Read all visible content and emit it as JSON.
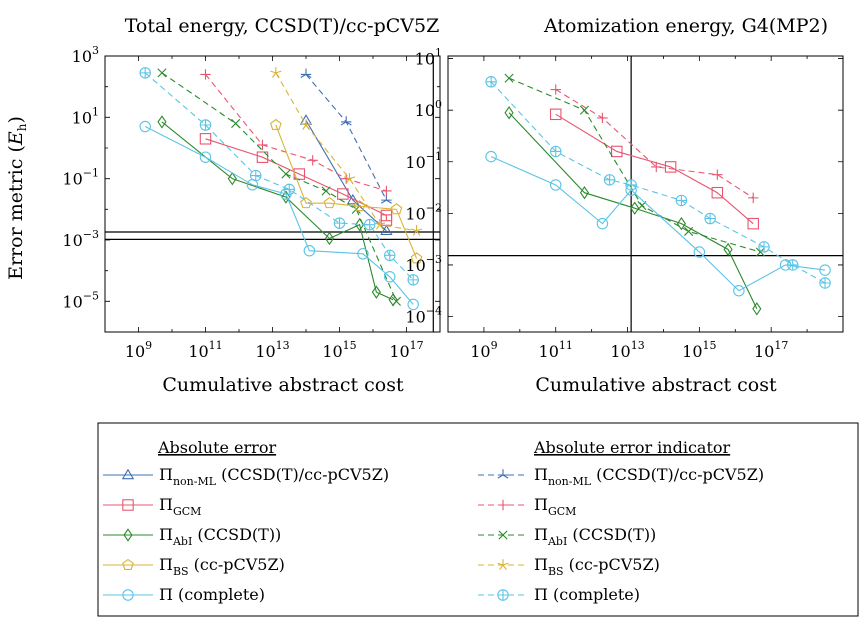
{
  "colors": {
    "nonml": "#3f6fb3",
    "gcm": "#e8556f",
    "abi": "#2b8a2b",
    "bs": "#d9b437",
    "complete": "#5bc4e6"
  },
  "legend": {
    "header_left": "Absolute error",
    "header_right": "Absolute error indicator",
    "entries": [
      {
        "label": "Π_non-ML (CCSD(T)/cc-pCV5Z)",
        "base": "Π",
        "sub": "non-ML",
        "suffix": " (CCSD(T)/cc-pCV5Z)",
        "color": "#3f6fb3",
        "marker": "triangle",
        "dash": false
      },
      {
        "label": "Π_non-ML (CCSD(T)/cc-pCV5Z)",
        "base": "Π",
        "sub": "non-ML",
        "suffix": " (CCSD(T)/cc-pCV5Z)",
        "color": "#3f6fb3",
        "marker": "tristar",
        "dash": true
      },
      {
        "label": "Π_GCM",
        "base": "Π",
        "sub": "GCM",
        "suffix": "",
        "color": "#e8556f",
        "marker": "square",
        "dash": false
      },
      {
        "label": "Π_GCM",
        "base": "Π",
        "sub": "GCM",
        "suffix": "",
        "color": "#e8556f",
        "marker": "plus",
        "dash": true
      },
      {
        "label": "Π_AbI (CCSD(T))",
        "base": "Π",
        "sub": "AbI",
        "suffix": " (CCSD(T))",
        "color": "#2b8a2b",
        "marker": "diamond",
        "dash": false
      },
      {
        "label": "Π_AbI (CCSD(T))",
        "base": "Π",
        "sub": "AbI",
        "suffix": " (CCSD(T))",
        "color": "#2b8a2b",
        "marker": "cross",
        "dash": true
      },
      {
        "label": "Π_BS (cc-pCV5Z)",
        "base": "Π",
        "sub": "BS",
        "suffix": " (cc-pCV5Z)",
        "color": "#d9b437",
        "marker": "pentagon",
        "dash": false
      },
      {
        "label": "Π_BS (cc-pCV5Z)",
        "base": "Π",
        "sub": "BS",
        "suffix": " (cc-pCV5Z)",
        "color": "#d9b437",
        "marker": "star",
        "dash": true
      },
      {
        "label": "Π (complete)",
        "base": "Π",
        "sub": "",
        "suffix": " (complete)",
        "color": "#5bc4e6",
        "marker": "circle",
        "dash": false
      },
      {
        "label": "Π (complete)",
        "base": "Π",
        "sub": "",
        "suffix": " (complete)",
        "color": "#5bc4e6",
        "marker": "oplus",
        "dash": true
      }
    ]
  },
  "chart_data": [
    {
      "type": "line",
      "title": "Total energy, CCSD(T)/cc-pCV5Z",
      "xlabel": "Cumulative abstract cost",
      "ylabel": "Error metric (E_h)",
      "ylabel_base": "Error metric (",
      "ylabel_var": "E",
      "ylabel_sub": "h",
      "ylabel_end": ")",
      "xscale": "log",
      "yscale": "log",
      "xlim_log10": [
        8,
        18
      ],
      "ylim_log10": [
        -6,
        3
      ],
      "xticks_log10": [
        9,
        11,
        13,
        15,
        17
      ],
      "yticks_log10": [
        -5,
        -3,
        -1,
        1,
        3
      ],
      "ref_lines": {
        "x_log10": 17.8,
        "y_log10": [
          -2.74,
          -2.98
        ]
      },
      "series": [
        {
          "legend": 0,
          "points": [
            [
              14,
              0.9
            ],
            [
              15.4,
              -1.7
            ],
            [
              16.4,
              -2.7
            ]
          ]
        },
        {
          "legend": 1,
          "points": [
            [
              14,
              2.4
            ],
            [
              15.2,
              0.85
            ],
            [
              16.4,
              -1.7
            ]
          ]
        },
        {
          "legend": 2,
          "points": [
            [
              11,
              0.3
            ],
            [
              12.7,
              -0.3
            ],
            [
              13.8,
              -0.85
            ],
            [
              15.1,
              -1.5
            ],
            [
              16.4,
              -2.2
            ],
            [
              16.4,
              -2.35
            ]
          ]
        },
        {
          "legend": 3,
          "points": [
            [
              11,
              2.4
            ],
            [
              12.7,
              0.1
            ],
            [
              14.2,
              -0.4
            ],
            [
              15.2,
              -1.0
            ],
            [
              16.4,
              -1.4
            ]
          ]
        },
        {
          "legend": 4,
          "points": [
            [
              9.7,
              0.85
            ],
            [
              11.8,
              -1.0
            ],
            [
              13.4,
              -1.6
            ],
            [
              14.7,
              -2.95
            ],
            [
              15.6,
              -2.5
            ],
            [
              16.1,
              -4.7
            ],
            [
              16.6,
              -4.95
            ]
          ]
        },
        {
          "legend": 5,
          "points": [
            [
              9.7,
              2.45
            ],
            [
              11.9,
              0.8
            ],
            [
              13.4,
              -0.85
            ],
            [
              14.6,
              -1.4
            ],
            [
              15.5,
              -2.0
            ],
            [
              16.7,
              -5.0
            ]
          ]
        },
        {
          "legend": 6,
          "points": [
            [
              13.1,
              0.75
            ],
            [
              14.0,
              -1.8
            ],
            [
              14.7,
              -1.8
            ],
            [
              15.6,
              -1.9
            ],
            [
              16.7,
              -2.0
            ],
            [
              17.3,
              -3.6
            ]
          ]
        },
        {
          "legend": 7,
          "points": [
            [
              13.1,
              2.45
            ],
            [
              14.0,
              0.75
            ],
            [
              15.3,
              -1.0
            ],
            [
              16.2,
              -2.5
            ],
            [
              17.3,
              -2.7
            ]
          ]
        },
        {
          "legend": 8,
          "points": [
            [
              9.2,
              0.7
            ],
            [
              11,
              -0.3
            ],
            [
              12.4,
              -1.2
            ],
            [
              13.4,
              -1.5
            ],
            [
              14.1,
              -3.35
            ],
            [
              15.7,
              -3.45
            ],
            [
              16.5,
              -4.2
            ],
            [
              17.2,
              -5.1
            ]
          ]
        },
        {
          "legend": 9,
          "points": [
            [
              9.2,
              2.45
            ],
            [
              11,
              0.75
            ],
            [
              12.5,
              -0.9
            ],
            [
              13.5,
              -1.35
            ],
            [
              15.0,
              -2.45
            ],
            [
              15.9,
              -2.5
            ],
            [
              16.5,
              -3.5
            ],
            [
              17.2,
              -4.3
            ]
          ]
        }
      ]
    },
    {
      "type": "line",
      "title": "Atomization energy, G4(MP2)",
      "xlabel": "Cumulative abstract cost",
      "xscale": "log",
      "yscale": "log",
      "xlim_log10": [
        8,
        19
      ],
      "ylim_log10": [
        -4.3,
        1.05
      ],
      "xticks_log10": [
        9,
        11,
        13,
        15,
        17
      ],
      "yticks_log10": [
        -4,
        -3,
        -2,
        -1,
        0,
        1
      ],
      "ref_lines": {
        "x_log10": 13.1,
        "y_log10": [
          -2.82
        ]
      },
      "series": [
        {
          "legend": 2,
          "points": [
            [
              11,
              -0.08
            ],
            [
              12.7,
              -0.8
            ],
            [
              14.2,
              -1.1
            ],
            [
              15.5,
              -1.6
            ],
            [
              16.5,
              -2.2
            ]
          ]
        },
        {
          "legend": 3,
          "points": [
            [
              11,
              0.4
            ],
            [
              12.3,
              -0.15
            ],
            [
              13.8,
              -1.1
            ],
            [
              15.5,
              -1.25
            ],
            [
              16.5,
              -1.7
            ]
          ]
        },
        {
          "legend": 4,
          "points": [
            [
              9.7,
              -0.05
            ],
            [
              11.8,
              -1.6
            ],
            [
              13.2,
              -1.9
            ],
            [
              14.5,
              -2.2
            ],
            [
              15.8,
              -2.7
            ],
            [
              16.6,
              -3.85
            ]
          ]
        },
        {
          "legend": 5,
          "points": [
            [
              9.7,
              0.62
            ],
            [
              11.8,
              0.0
            ],
            [
              13.4,
              -1.85
            ],
            [
              14.7,
              -2.35
            ],
            [
              16.7,
              -2.75
            ]
          ]
        },
        {
          "legend": 8,
          "points": [
            [
              9.2,
              -0.9
            ],
            [
              11,
              -1.45
            ],
            [
              12.3,
              -2.2
            ],
            [
              13.1,
              -1.55
            ],
            [
              15.0,
              -2.75
            ],
            [
              16.1,
              -3.5
            ],
            [
              17.4,
              -3.0
            ],
            [
              18.5,
              -3.1
            ]
          ]
        },
        {
          "legend": 9,
          "points": [
            [
              9.2,
              0.55
            ],
            [
              11,
              -0.8
            ],
            [
              12.5,
              -1.35
            ],
            [
              13.1,
              -1.45
            ],
            [
              14.5,
              -1.75
            ],
            [
              15.3,
              -2.1
            ],
            [
              16.8,
              -2.65
            ],
            [
              17.6,
              -3.0
            ],
            [
              18.5,
              -3.35
            ]
          ]
        }
      ]
    }
  ]
}
